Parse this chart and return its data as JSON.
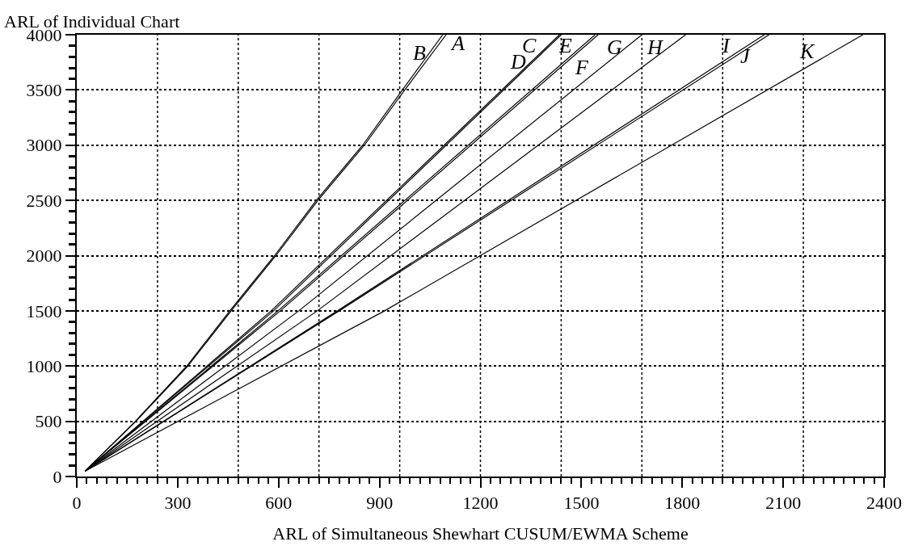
{
  "chart_data": {
    "type": "line",
    "xlabel": "ARL of Simultaneous Shewhart CUSUM/EWMA Scheme",
    "ylabel": "ARL of Individual Chart",
    "xlim": [
      0,
      2400
    ],
    "ylim": [
      0,
      4000
    ],
    "xticks": [
      0,
      300,
      600,
      900,
      1200,
      1500,
      1800,
      2100,
      2400,
      {
        "value": 30,
        "label": null
      },
      {
        "value": 60,
        "label": null
      },
      {
        "value": 90,
        "label": null
      },
      {
        "value": 120,
        "label": null
      },
      {
        "value": 150,
        "label": null
      },
      {
        "value": 180,
        "label": null
      },
      {
        "value": 210,
        "label": null
      },
      {
        "value": 240,
        "label": null
      },
      {
        "value": 270,
        "label": null
      },
      {
        "value": 330,
        "label": null
      },
      {
        "value": 360,
        "label": null
      },
      {
        "value": 390,
        "label": null
      },
      {
        "value": 420,
        "label": null
      },
      {
        "value": 450,
        "label": null
      },
      {
        "value": 480,
        "label": null
      },
      {
        "value": 510,
        "label": null
      },
      {
        "value": 540,
        "label": null
      },
      {
        "value": 570,
        "label": null
      },
      {
        "value": 630,
        "label": null
      },
      {
        "value": 660,
        "label": null
      },
      {
        "value": 690,
        "label": null
      },
      {
        "value": 720,
        "label": null
      },
      {
        "value": 750,
        "label": null
      },
      {
        "value": 780,
        "label": null
      },
      {
        "value": 810,
        "label": null
      },
      {
        "value": 840,
        "label": null
      },
      {
        "value": 870,
        "label": null
      },
      {
        "value": 930,
        "label": null
      },
      {
        "value": 960,
        "label": null
      },
      {
        "value": 990,
        "label": null
      },
      {
        "value": 1020,
        "label": null
      },
      {
        "value": 1050,
        "label": null
      },
      {
        "value": 1080,
        "label": null
      },
      {
        "value": 1110,
        "label": null
      },
      {
        "value": 1140,
        "label": null
      },
      {
        "value": 1170,
        "label": null
      },
      {
        "value": 1230,
        "label": null
      },
      {
        "value": 1260,
        "label": null
      },
      {
        "value": 1290,
        "label": null
      },
      {
        "value": 1320,
        "label": null
      },
      {
        "value": 1350,
        "label": null
      },
      {
        "value": 1380,
        "label": null
      },
      {
        "value": 1410,
        "label": null
      },
      {
        "value": 1440,
        "label": null
      },
      {
        "value": 1470,
        "label": null
      },
      {
        "value": 1530,
        "label": null
      },
      {
        "value": 1560,
        "label": null
      },
      {
        "value": 1590,
        "label": null
      },
      {
        "value": 1620,
        "label": null
      },
      {
        "value": 1650,
        "label": null
      },
      {
        "value": 1680,
        "label": null
      },
      {
        "value": 1710,
        "label": null
      },
      {
        "value": 1740,
        "label": null
      },
      {
        "value": 1770,
        "label": null
      },
      {
        "value": 1830,
        "label": null
      },
      {
        "value": 1860,
        "label": null
      },
      {
        "value": 1890,
        "label": null
      },
      {
        "value": 1920,
        "label": null
      },
      {
        "value": 1950,
        "label": null
      },
      {
        "value": 1980,
        "label": null
      },
      {
        "value": 2010,
        "label": null
      },
      {
        "value": 2040,
        "label": null
      },
      {
        "value": 2070,
        "label": null
      },
      {
        "value": 2130,
        "label": null
      },
      {
        "value": 2160,
        "label": null
      },
      {
        "value": 2190,
        "label": null
      },
      {
        "value": 2220,
        "label": null
      },
      {
        "value": 2250,
        "label": null
      },
      {
        "value": 2280,
        "label": null
      },
      {
        "value": 2310,
        "label": null
      },
      {
        "value": 2340,
        "label": null
      },
      {
        "value": 2370,
        "label": null
      }
    ],
    "yticks": [
      0,
      500,
      1000,
      1500,
      2000,
      2500,
      3000,
      3500,
      4000,
      {
        "value": 100,
        "label": null
      },
      {
        "value": 200,
        "label": null
      },
      {
        "value": 300,
        "label": null
      },
      {
        "value": 400,
        "label": null
      },
      {
        "value": 600,
        "label": null
      },
      {
        "value": 700,
        "label": null
      },
      {
        "value": 800,
        "label": null
      },
      {
        "value": 900,
        "label": null
      },
      {
        "value": 1100,
        "label": null
      },
      {
        "value": 1200,
        "label": null
      },
      {
        "value": 1300,
        "label": null
      },
      {
        "value": 1400,
        "label": null
      },
      {
        "value": 1600,
        "label": null
      },
      {
        "value": 1700,
        "label": null
      },
      {
        "value": 1800,
        "label": null
      },
      {
        "value": 1900,
        "label": null
      },
      {
        "value": 2100,
        "label": null
      },
      {
        "value": 2200,
        "label": null
      },
      {
        "value": 2300,
        "label": null
      },
      {
        "value": 2400,
        "label": null
      },
      {
        "value": 2600,
        "label": null
      },
      {
        "value": 2700,
        "label": null
      },
      {
        "value": 2800,
        "label": null
      },
      {
        "value": 2900,
        "label": null
      },
      {
        "value": 3100,
        "label": null
      },
      {
        "value": 3200,
        "label": null
      },
      {
        "value": 3300,
        "label": null
      },
      {
        "value": 3400,
        "label": null
      },
      {
        "value": 3600,
        "label": null
      },
      {
        "value": 3700,
        "label": null
      },
      {
        "value": 3800,
        "label": null
      },
      {
        "value": 3900,
        "label": null
      }
    ],
    "grid": "y",
    "legend": false,
    "marker": "none",
    "line_style": "solid",
    "ref_lines": [
      {
        "axis": "x",
        "value": 240,
        "line_style": "dotted",
        "color": "#000000"
      },
      {
        "axis": "x",
        "value": 480,
        "line_style": "dotted",
        "color": "#000000"
      },
      {
        "axis": "x",
        "value": 720,
        "line_style": "dotted",
        "color": "#000000"
      },
      {
        "axis": "x",
        "value": 960,
        "line_style": "dotted",
        "color": "#000000"
      },
      {
        "axis": "x",
        "value": 1200,
        "line_style": "dotted",
        "color": "#000000"
      },
      {
        "axis": "x",
        "value": 1440,
        "line_style": "dotted",
        "color": "#000000"
      },
      {
        "axis": "x",
        "value": 1680,
        "line_style": "dotted",
        "color": "#000000"
      },
      {
        "axis": "x",
        "value": 1920,
        "line_style": "dotted",
        "color": "#000000"
      },
      {
        "axis": "x",
        "value": 2160,
        "line_style": "dotted",
        "color": "#000000"
      }
    ],
    "series": [
      {
        "name": "A",
        "color": "#000000",
        "x": [
          25,
          176,
          330,
          459,
          592,
          717,
          855,
          975,
          1098
        ],
        "values": [
          50,
          500,
          1000,
          1500,
          2000,
          2500,
          3000,
          3500,
          4000
        ]
      },
      {
        "name": "B",
        "color": "#000000",
        "x": [
          25,
          174,
          327,
          455,
          588,
          712,
          850,
          968,
          1088
        ],
        "values": [
          50,
          500,
          1000,
          1500,
          2000,
          2500,
          3000,
          3500,
          4000
        ]
      },
      {
        "name": "C",
        "color": "#000000",
        "x": [
          25,
          578,
          1435
        ],
        "values": [
          50,
          1500,
          4000
        ]
      },
      {
        "name": "D",
        "color": "#000000",
        "x": [
          25,
          585,
          1440
        ],
        "values": [
          50,
          1500,
          4000
        ]
      },
      {
        "name": "E",
        "color": "#000000",
        "x": [
          25,
          598,
          1541
        ],
        "values": [
          50,
          1500,
          4000
        ]
      },
      {
        "name": "F",
        "color": "#000000",
        "x": [
          25,
          605,
          1550
        ],
        "values": [
          50,
          1500,
          4000
        ]
      },
      {
        "name": "G",
        "color": "#000000",
        "x": [
          25,
          660,
          1680
        ],
        "values": [
          50,
          1500,
          4000
        ]
      },
      {
        "name": "H",
        "color": "#000000",
        "x": [
          25,
          715,
          1810
        ],
        "values": [
          50,
          1500,
          4000
        ]
      },
      {
        "name": "I",
        "color": "#000000",
        "x": [
          25,
          775,
          2044
        ],
        "values": [
          50,
          1500,
          4000
        ]
      },
      {
        "name": "J",
        "color": "#000000",
        "x": [
          25,
          780,
          2058
        ],
        "values": [
          50,
          1500,
          4000
        ]
      },
      {
        "name": "K",
        "color": "#000000",
        "x": [
          25,
          915,
          2337
        ],
        "values": [
          50,
          1500,
          4000
        ]
      }
    ]
  }
}
